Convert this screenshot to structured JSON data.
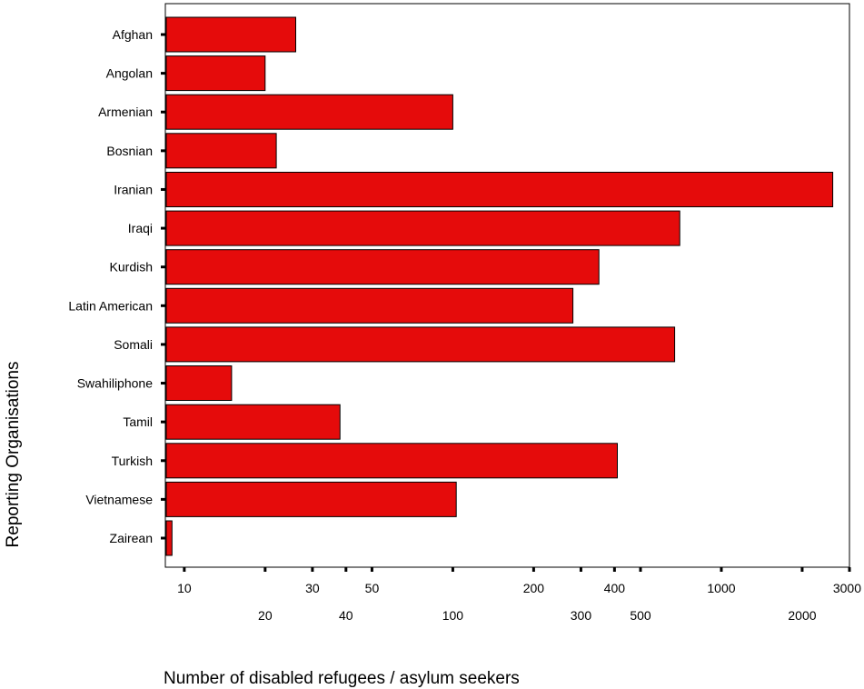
{
  "chart_data": {
    "type": "bar",
    "orientation": "horizontal",
    "title": "",
    "xlabel": "Number of disabled refugees / asylum seekers",
    "ylabel": "Reporting Organisations",
    "x_scale": "log",
    "xlim": [
      8.5,
      3000
    ],
    "grid": false,
    "bar_color": "#e50b0b",
    "categories": [
      "Afghan",
      "Angolan",
      "Armenian",
      "Bosnian",
      "Iranian",
      "Iraqi",
      "Kurdish",
      "Latin American",
      "Somali",
      "Swahiliphone",
      "Tamil",
      "Turkish",
      "Vietnamese",
      "Zairean"
    ],
    "values": [
      26,
      20,
      100,
      22,
      2600,
      700,
      350,
      280,
      670,
      15,
      38,
      410,
      103,
      9
    ],
    "x_ticks": [
      {
        "value": 10,
        "label": "10",
        "row": 0
      },
      {
        "value": 20,
        "label": "20",
        "row": 1
      },
      {
        "value": 30,
        "label": "30",
        "row": 0
      },
      {
        "value": 40,
        "label": "40",
        "row": 1
      },
      {
        "value": 50,
        "label": "50",
        "row": 0
      },
      {
        "value": 100,
        "label": "100",
        "row": 1
      },
      {
        "value": 200,
        "label": "200",
        "row": 0
      },
      {
        "value": 300,
        "label": "300",
        "row": 1
      },
      {
        "value": 400,
        "label": "400",
        "row": 0
      },
      {
        "value": 500,
        "label": "500",
        "row": 1
      },
      {
        "value": 1000,
        "label": "1000",
        "row": 0
      },
      {
        "value": 2000,
        "label": "2000",
        "row": 1
      },
      {
        "value": 3000,
        "label": "3000",
        "row": 0
      }
    ]
  }
}
